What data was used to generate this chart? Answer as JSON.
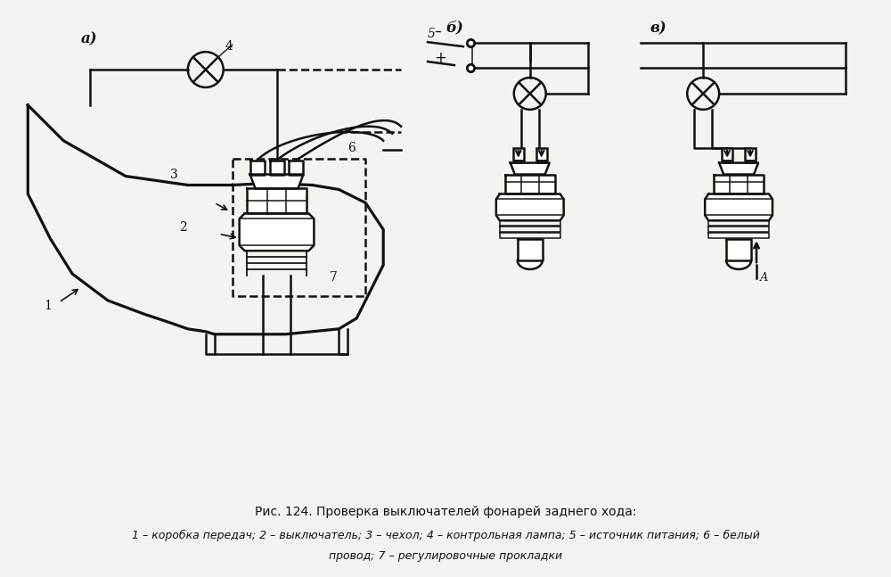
{
  "bg_color": "#f5f3f0",
  "line_color": "#111111",
  "title": "Рис. 124. Проверка выключателей фонарей заднего хода:",
  "caption_line1": "1 – коробка передач; 2 – выключатель; 3 – чехол; 4 – контрольная лампа; 5 – источник питания; 6 – белый",
  "caption_line2": "провод; 7 – регулировочные прокладки",
  "label_a": "а)",
  "label_b": "б)",
  "label_v": "в)"
}
